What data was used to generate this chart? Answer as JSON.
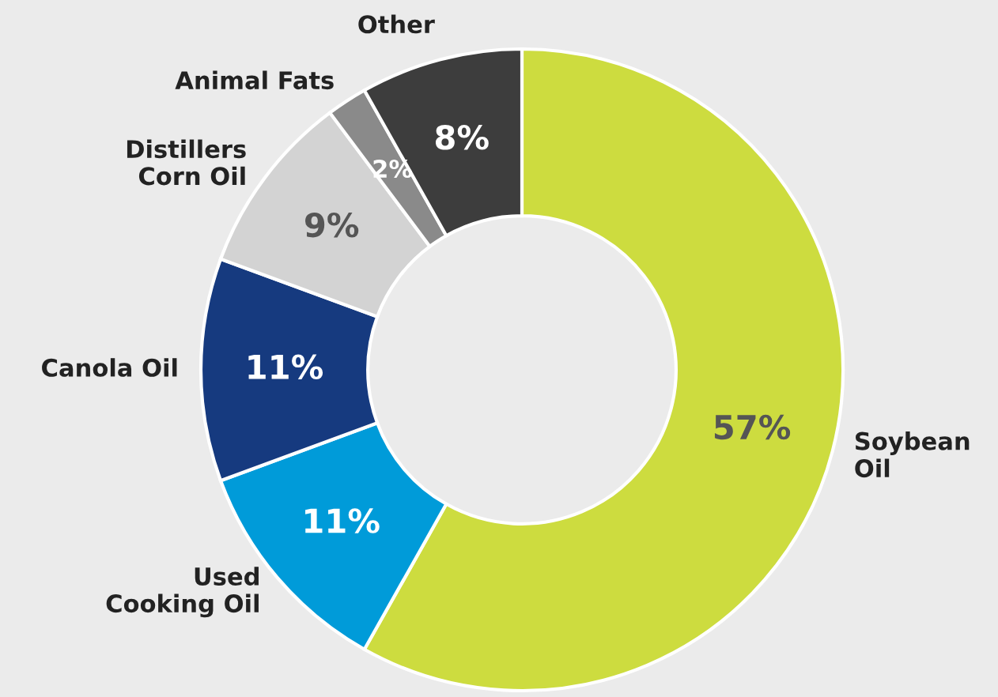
{
  "chart_data": {
    "type": "donut",
    "categories": [
      "Soybean\nOil",
      "Used\nCooking Oil",
      "Canola Oil",
      "Distillers\nCorn Oil",
      "Animal Fats",
      "Other"
    ],
    "values": [
      57,
      11,
      11,
      9,
      2,
      8
    ],
    "value_labels": [
      "57%",
      "11%",
      "11%",
      "9%",
      "2%",
      "8%"
    ],
    "colors": [
      "#cddc3f",
      "#009bd9",
      "#163a7f",
      "#d3d3d3",
      "#8a8a8a",
      "#3d3d3d"
    ],
    "legend": false
  }
}
